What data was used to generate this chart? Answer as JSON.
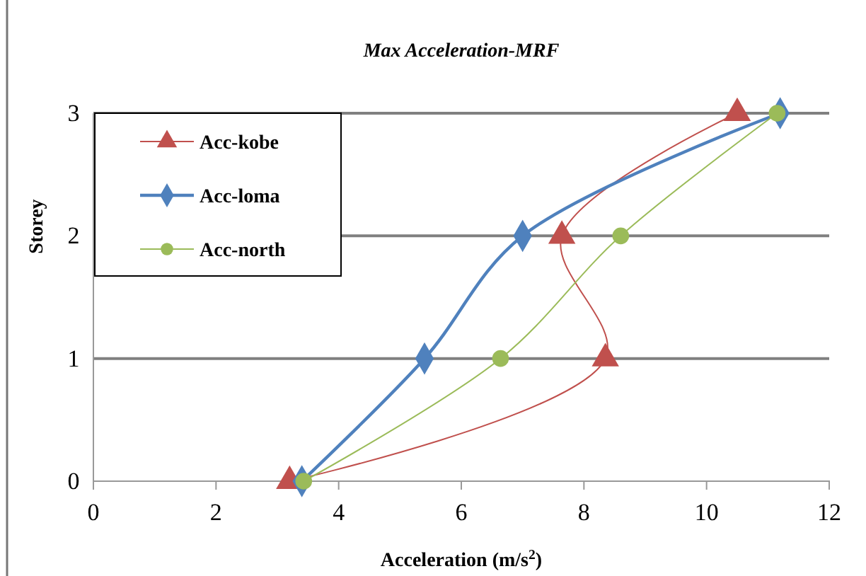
{
  "chart_data": {
    "type": "line",
    "title": "Max Acceleration-MRF",
    "xlabel": "Acceleration (m/s$^{2}$)",
    "ylabel": "Storey",
    "series": [
      {
        "name": "Acc-kobe",
        "color": "#c0504d",
        "marker": "triangle",
        "x": [
          3.2,
          8.35,
          7.64,
          10.5
        ],
        "values": [
          0,
          1,
          2,
          3
        ]
      },
      {
        "name": "Acc-loma",
        "color": "#4f81bd",
        "marker": "diamond",
        "x": [
          3.4,
          5.4,
          7.0,
          11.2
        ],
        "values": [
          0,
          1,
          2,
          3
        ]
      },
      {
        "name": "Acc-north",
        "color": "#9bbb59",
        "marker": "circle",
        "x": [
          3.43,
          6.64,
          8.6,
          11.15
        ],
        "values": [
          0,
          1,
          2,
          3
        ]
      }
    ],
    "xlim": [
      0,
      12
    ],
    "xticks": [
      0,
      2,
      4,
      6,
      8,
      10,
      12
    ],
    "ylim": [
      0,
      3
    ],
    "yticks": [
      0,
      1,
      2,
      3
    ],
    "grid": "y",
    "legend": "top left"
  }
}
